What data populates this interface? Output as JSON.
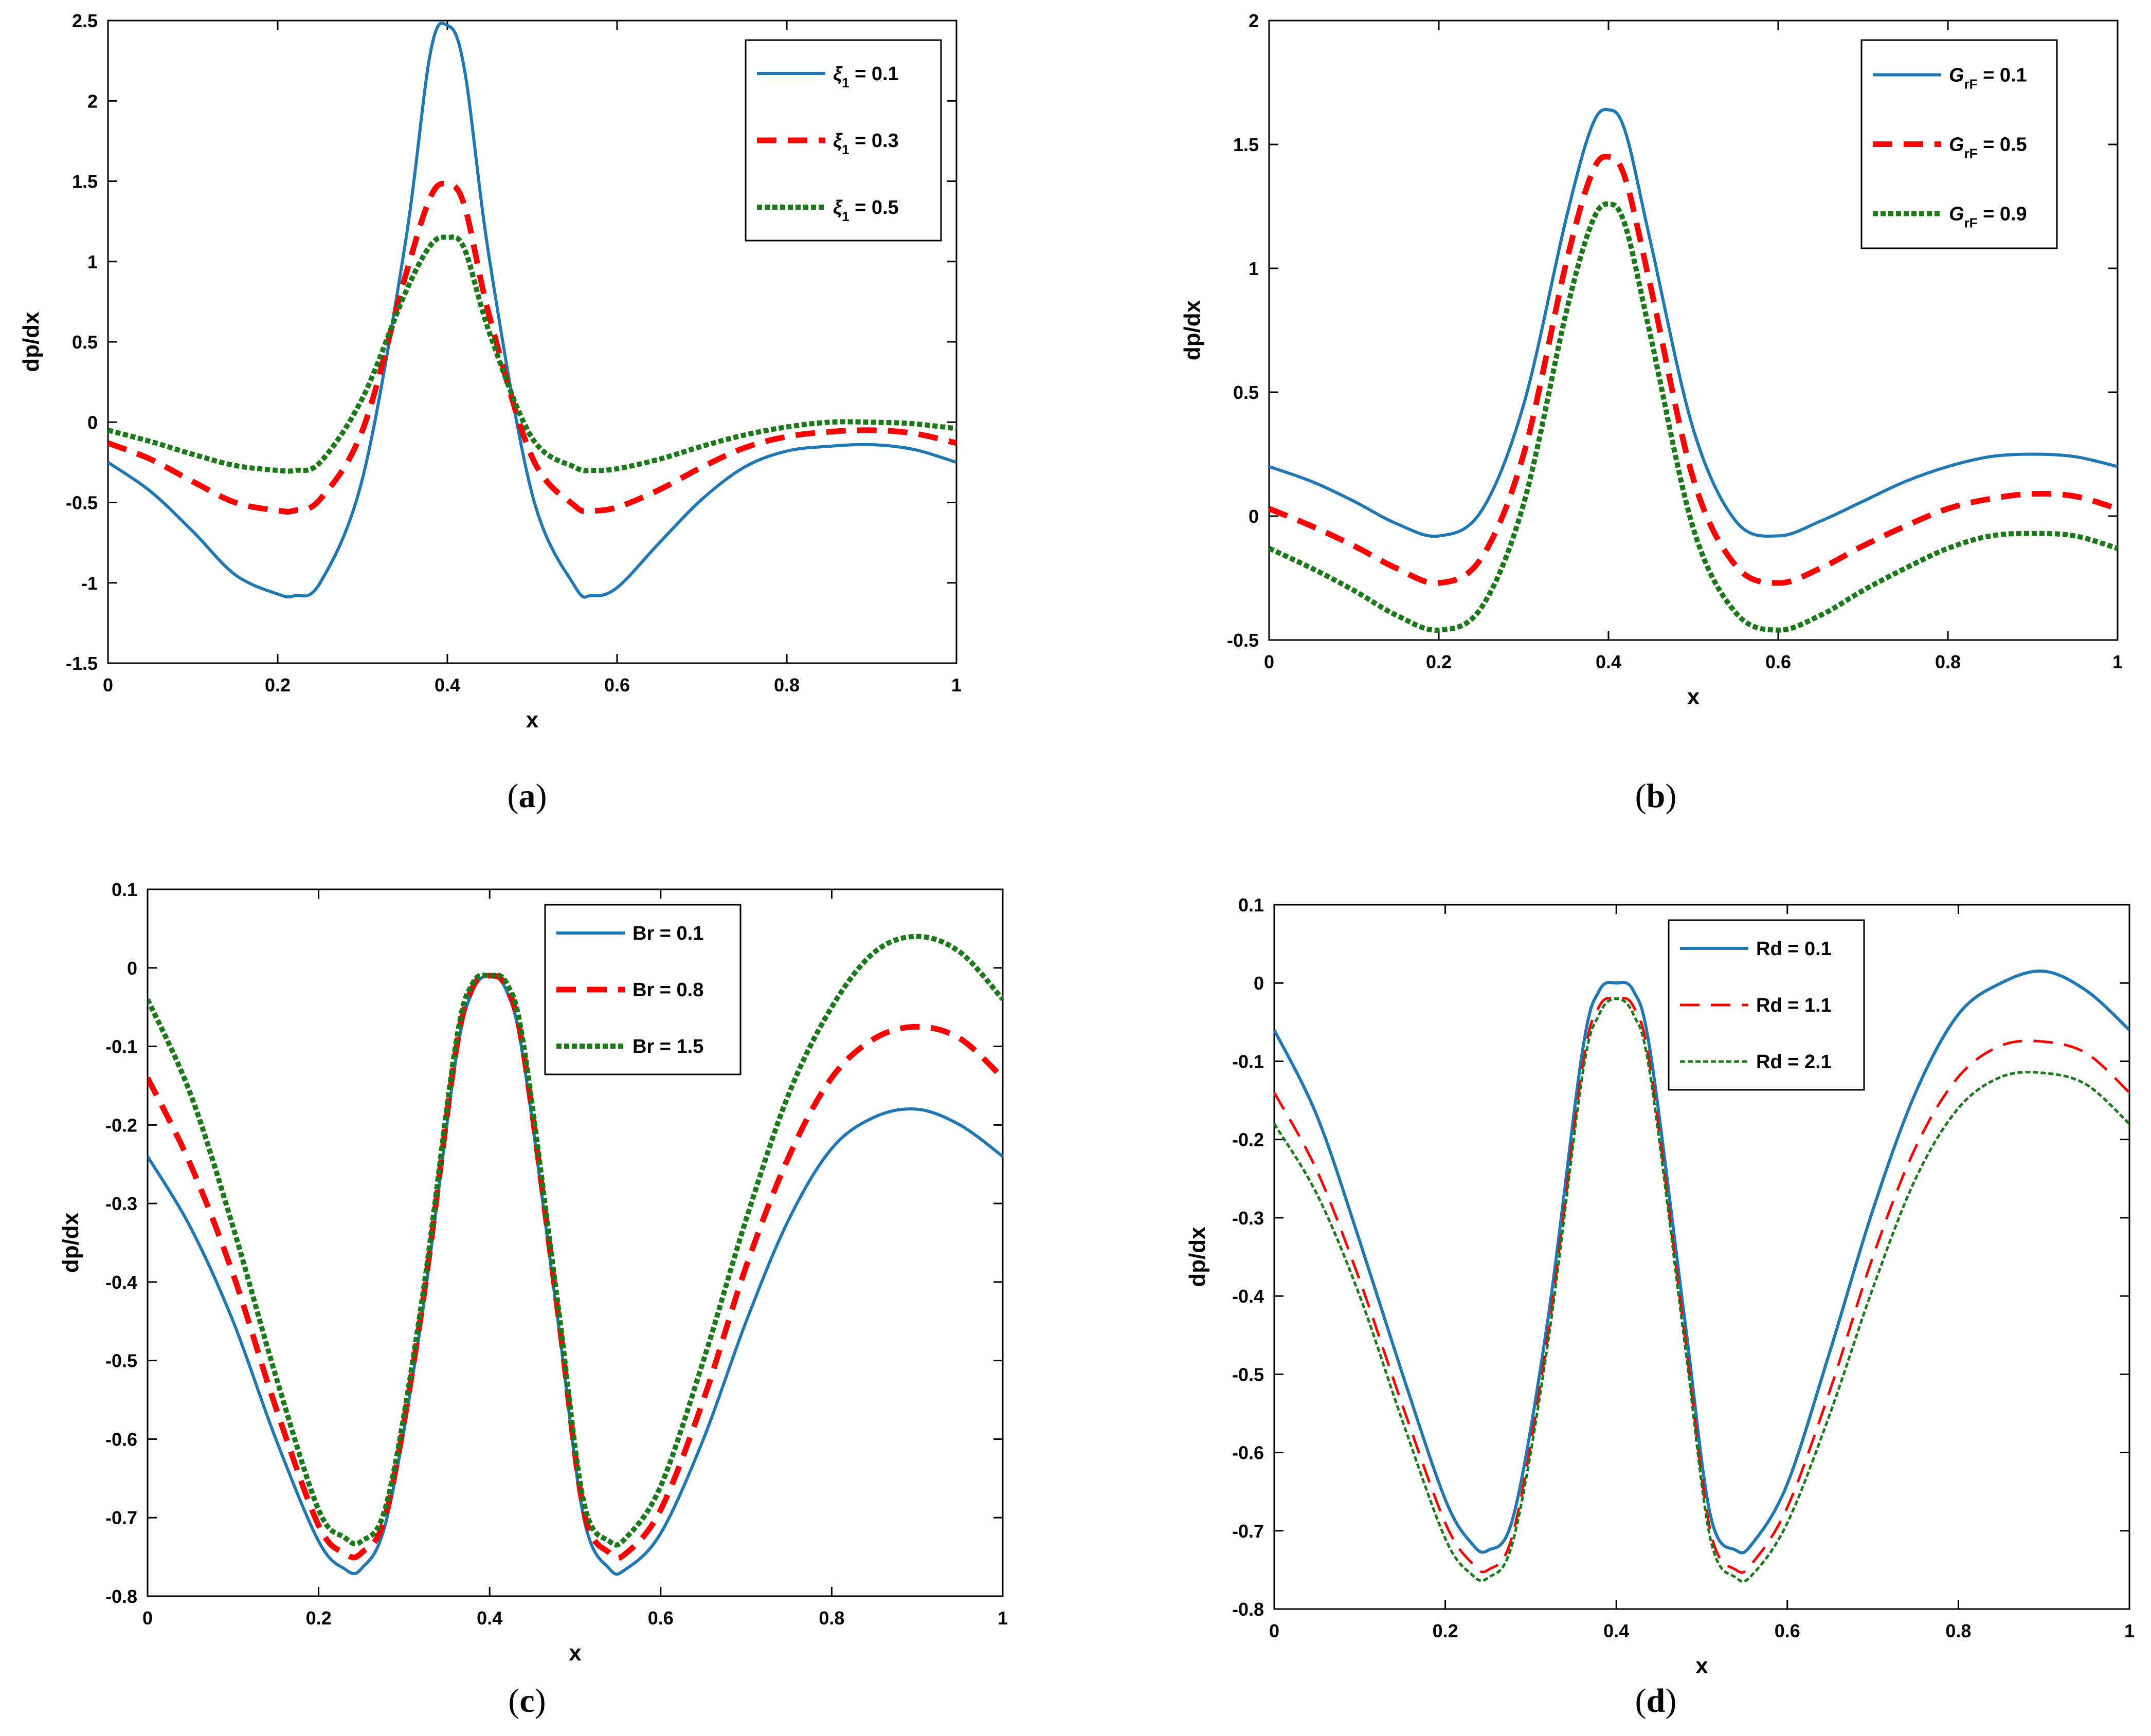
{
  "colors": {
    "blue": "#1f77b4",
    "red": "#ff0000",
    "green": "#1a7a1a"
  },
  "chart_data": [
    {
      "type": "line",
      "panel": "a",
      "caption": {
        "open": "(",
        "letter": "a",
        "close": ")"
      },
      "xlabel": "x",
      "ylabel": "dp/dx",
      "xlim": [
        0,
        1
      ],
      "ylim": [
        -1.5,
        2.5
      ],
      "xticks": [
        "0",
        "0.2",
        "0.4",
        "0.6",
        "0.8",
        "1"
      ],
      "yticks": [
        "-1.5",
        "-1",
        "-0.5",
        "0",
        "0.5",
        "1",
        "1.5",
        "2",
        "2.5"
      ],
      "legend_position": "top-right",
      "x": [
        0,
        0.05,
        0.1,
        0.15,
        0.2,
        0.22,
        0.25,
        0.3,
        0.35,
        0.38,
        0.4,
        0.42,
        0.45,
        0.5,
        0.55,
        0.57,
        0.6,
        0.65,
        0.7,
        0.75,
        0.8,
        0.85,
        0.9,
        0.95,
        1
      ],
      "series": [
        {
          "label": {
            "sym": "ξ",
            "sub": "1",
            "rest": " = 0.1"
          },
          "style": "solid",
          "color": "blue",
          "values": [
            -0.25,
            -0.43,
            -0.68,
            -0.95,
            -1.07,
            -1.08,
            -1.0,
            -0.35,
            1.1,
            2.3,
            2.47,
            2.2,
            1.0,
            -0.45,
            -1.02,
            -1.08,
            -1.03,
            -0.75,
            -0.48,
            -0.28,
            -0.18,
            -0.15,
            -0.14,
            -0.17,
            -0.25
          ]
        },
        {
          "label": {
            "sym": "ξ",
            "sub": "1",
            "rest": " = 0.3"
          },
          "style": "dashed",
          "color": "red",
          "values": [
            -0.13,
            -0.23,
            -0.37,
            -0.5,
            -0.55,
            -0.55,
            -0.48,
            -0.05,
            0.9,
            1.4,
            1.48,
            1.35,
            0.65,
            -0.22,
            -0.52,
            -0.55,
            -0.53,
            -0.42,
            -0.28,
            -0.16,
            -0.09,
            -0.06,
            -0.05,
            -0.07,
            -0.13
          ]
        },
        {
          "label": {
            "sym": "ξ",
            "sub": "1",
            "rest": " = 0.5"
          },
          "style": "dotted",
          "color": "green",
          "values": [
            -0.05,
            -0.12,
            -0.2,
            -0.27,
            -0.3,
            -0.3,
            -0.25,
            0.15,
            0.8,
            1.1,
            1.15,
            1.08,
            0.55,
            -0.1,
            -0.28,
            -0.3,
            -0.29,
            -0.23,
            -0.15,
            -0.08,
            -0.03,
            0.0,
            0.0,
            -0.01,
            -0.04
          ]
        }
      ]
    },
    {
      "type": "line",
      "panel": "b",
      "caption": {
        "open": "(",
        "letter": "b",
        "close": ")"
      },
      "xlabel": "x",
      "ylabel": "dp/dx",
      "xlim": [
        0,
        1
      ],
      "ylim": [
        -0.5,
        2
      ],
      "xticks": [
        "0",
        "0.2",
        "0.4",
        "0.6",
        "0.8",
        "1"
      ],
      "yticks": [
        "-0.5",
        "0",
        "0.5",
        "1",
        "1.5",
        "2"
      ],
      "legend_position": "top-right",
      "x": [
        0,
        0.05,
        0.1,
        0.15,
        0.2,
        0.25,
        0.3,
        0.35,
        0.38,
        0.4,
        0.42,
        0.45,
        0.5,
        0.55,
        0.6,
        0.65,
        0.7,
        0.75,
        0.8,
        0.85,
        0.9,
        0.95,
        1
      ],
      "series": [
        {
          "label": {
            "sym": "G",
            "sub": "rF",
            "rest": " = 0.1"
          },
          "style": "solid",
          "color": "blue",
          "values": [
            0.2,
            0.14,
            0.06,
            -0.03,
            -0.08,
            0.02,
            0.45,
            1.2,
            1.57,
            1.64,
            1.55,
            1.1,
            0.35,
            -0.02,
            -0.08,
            -0.02,
            0.06,
            0.14,
            0.2,
            0.24,
            0.25,
            0.24,
            0.2
          ]
        },
        {
          "label": {
            "sym": "G",
            "sub": "rF",
            "rest": " = 0.5"
          },
          "style": "dashed",
          "color": "red",
          "values": [
            0.03,
            -0.04,
            -0.12,
            -0.21,
            -0.27,
            -0.17,
            0.25,
            1.02,
            1.38,
            1.45,
            1.36,
            0.92,
            0.15,
            -0.2,
            -0.27,
            -0.21,
            -0.12,
            -0.04,
            0.03,
            0.07,
            0.09,
            0.08,
            0.03
          ]
        },
        {
          "label": {
            "sym": "G",
            "sub": "rF",
            "rest": " = 0.9"
          },
          "style": "dotted",
          "color": "green",
          "values": [
            -0.13,
            -0.21,
            -0.3,
            -0.4,
            -0.46,
            -0.37,
            0.05,
            0.82,
            1.18,
            1.26,
            1.17,
            0.72,
            -0.05,
            -0.39,
            -0.46,
            -0.4,
            -0.3,
            -0.21,
            -0.13,
            -0.08,
            -0.07,
            -0.08,
            -0.13
          ]
        }
      ]
    },
    {
      "type": "line",
      "panel": "c",
      "caption": {
        "open": "(",
        "letter": "c",
        "close": ")"
      },
      "xlabel": "x",
      "ylabel": "dp/dx",
      "xlim": [
        0,
        1
      ],
      "ylim": [
        -0.8,
        0.1
      ],
      "xticks": [
        "0",
        "0.2",
        "0.4",
        "0.6",
        "0.8",
        "1"
      ],
      "yticks": [
        "-0.8",
        "-0.7",
        "-0.6",
        "-0.5",
        "-0.4",
        "-0.3",
        "-0.2",
        "-0.1",
        "0",
        "0.1"
      ],
      "legend_position": "top-center",
      "x": [
        0,
        0.05,
        0.1,
        0.15,
        0.2,
        0.23,
        0.25,
        0.28,
        0.32,
        0.36,
        0.38,
        0.4,
        0.42,
        0.44,
        0.48,
        0.51,
        0.54,
        0.56,
        0.6,
        0.65,
        0.7,
        0.75,
        0.8,
        0.85,
        0.9,
        0.95,
        1
      ],
      "series": [
        {
          "label": {
            "sym": "",
            "sub": "",
            "rest": "Br = 0.1"
          },
          "style": "solid",
          "color": "blue",
          "values": [
            -0.24,
            -0.33,
            -0.45,
            -0.6,
            -0.73,
            -0.765,
            -0.765,
            -0.7,
            -0.45,
            -0.12,
            -0.03,
            -0.01,
            -0.03,
            -0.12,
            -0.45,
            -0.7,
            -0.765,
            -0.765,
            -0.72,
            -0.6,
            -0.45,
            -0.32,
            -0.23,
            -0.19,
            -0.18,
            -0.2,
            -0.24
          ]
        },
        {
          "label": {
            "sym": "",
            "sub": "",
            "rest": "Br = 0.8"
          },
          "style": "dashed",
          "color": "red",
          "values": [
            -0.14,
            -0.25,
            -0.39,
            -0.56,
            -0.71,
            -0.745,
            -0.745,
            -0.69,
            -0.44,
            -0.11,
            -0.025,
            -0.01,
            -0.025,
            -0.11,
            -0.44,
            -0.69,
            -0.745,
            -0.745,
            -0.69,
            -0.55,
            -0.38,
            -0.24,
            -0.14,
            -0.09,
            -0.075,
            -0.09,
            -0.14
          ]
        },
        {
          "label": {
            "sym": "",
            "sub": "",
            "rest": "Br = 1.5"
          },
          "style": "dotted",
          "color": "green",
          "values": [
            -0.04,
            -0.16,
            -0.33,
            -0.52,
            -0.69,
            -0.725,
            -0.73,
            -0.68,
            -0.43,
            -0.1,
            -0.02,
            -0.01,
            -0.02,
            -0.1,
            -0.43,
            -0.68,
            -0.73,
            -0.725,
            -0.66,
            -0.5,
            -0.32,
            -0.16,
            -0.05,
            0.02,
            0.04,
            0.02,
            -0.04
          ]
        }
      ]
    },
    {
      "type": "line",
      "panel": "d",
      "caption": {
        "open": "(",
        "letter": "d",
        "close": ")"
      },
      "xlabel": "x",
      "ylabel": "dp/dx",
      "xlim": [
        0,
        1
      ],
      "ylim": [
        -0.8,
        0.1
      ],
      "xticks": [
        "0",
        "0.2",
        "0.4",
        "0.6",
        "0.8",
        "1"
      ],
      "yticks": [
        "-0.8",
        "-0.7",
        "-0.6",
        "-0.5",
        "-0.4",
        "-0.3",
        "-0.2",
        "-0.1",
        "0",
        "0.1"
      ],
      "legend_position": "top-center",
      "x": [
        0,
        0.05,
        0.1,
        0.15,
        0.2,
        0.23,
        0.25,
        0.28,
        0.32,
        0.36,
        0.38,
        0.4,
        0.42,
        0.44,
        0.48,
        0.51,
        0.54,
        0.56,
        0.6,
        0.65,
        0.7,
        0.75,
        0.8,
        0.85,
        0.9,
        0.95,
        1
      ],
      "series": [
        {
          "label": {
            "sym": "",
            "sub": "",
            "rest": "Rd = 0.1"
          },
          "style": "solid",
          "color": "blue",
          "values": [
            -0.06,
            -0.17,
            -0.33,
            -0.5,
            -0.66,
            -0.715,
            -0.725,
            -0.68,
            -0.43,
            -0.09,
            -0.01,
            0.0,
            -0.01,
            -0.09,
            -0.43,
            -0.68,
            -0.725,
            -0.715,
            -0.64,
            -0.47,
            -0.29,
            -0.14,
            -0.04,
            0.0,
            0.015,
            -0.01,
            -0.06
          ]
        },
        {
          "label": {
            "sym": "",
            "sub": "",
            "rest": "Rd = 1.1"
          },
          "style": "dashed",
          "color": "red",
          "values": [
            -0.14,
            -0.24,
            -0.38,
            -0.54,
            -0.69,
            -0.74,
            -0.75,
            -0.7,
            -0.45,
            -0.11,
            -0.03,
            -0.02,
            -0.03,
            -0.11,
            -0.45,
            -0.7,
            -0.75,
            -0.74,
            -0.67,
            -0.52,
            -0.35,
            -0.21,
            -0.12,
            -0.08,
            -0.075,
            -0.09,
            -0.14
          ]
        },
        {
          "label": {
            "sym": "",
            "sub": "",
            "rest": "Rd = 2.1"
          },
          "style": "dotted",
          "color": "green",
          "values": [
            -0.18,
            -0.27,
            -0.4,
            -0.56,
            -0.71,
            -0.755,
            -0.76,
            -0.71,
            -0.46,
            -0.12,
            -0.04,
            -0.02,
            -0.04,
            -0.12,
            -0.46,
            -0.71,
            -0.76,
            -0.755,
            -0.69,
            -0.55,
            -0.39,
            -0.25,
            -0.16,
            -0.12,
            -0.115,
            -0.13,
            -0.18
          ]
        }
      ]
    }
  ]
}
